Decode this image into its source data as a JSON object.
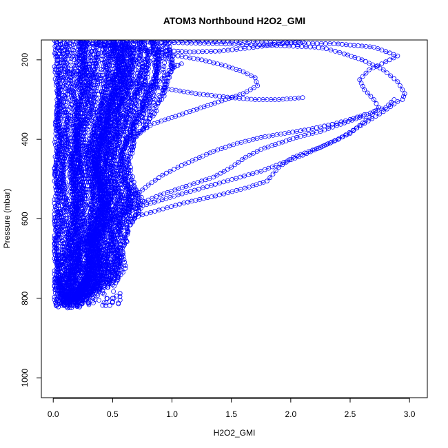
{
  "chart_data": {
    "type": "scatter",
    "title": "ATOM3 Northbound H2O2_GMI",
    "xlabel": "H2O2_GMI",
    "ylabel": "Pressure (mbar)",
    "xlim": [
      -0.1,
      3.15
    ],
    "ylim": [
      1050,
      150
    ],
    "y_reversed": true,
    "x_ticks": [
      0.0,
      0.5,
      1.0,
      1.5,
      2.0,
      2.5,
      3.0
    ],
    "x_tick_labels": [
      "0.0",
      "0.5",
      "1.0",
      "1.5",
      "2.0",
      "2.5",
      "3.0"
    ],
    "y_ticks": [
      200,
      400,
      600,
      800,
      1000
    ],
    "y_tick_labels": [
      "200",
      "400",
      "600",
      "800",
      "1000"
    ],
    "marker": "open-circle",
    "connected": true,
    "series_color": "#0000ff",
    "series": [
      {
        "points": [
          [
            0.02,
            810
          ],
          [
            0.06,
            780
          ],
          [
            0.1,
            730
          ],
          [
            0.16,
            690
          ],
          [
            0.28,
            650
          ],
          [
            0.45,
            610
          ],
          [
            0.72,
            570
          ],
          [
            1.05,
            540
          ],
          [
            1.4,
            510
          ],
          [
            1.75,
            480
          ],
          [
            2.1,
            440
          ],
          [
            2.4,
            400
          ],
          [
            2.62,
            360
          ],
          [
            2.78,
            330
          ],
          [
            2.9,
            305
          ],
          [
            2.94,
            300
          ],
          [
            2.96,
            285
          ],
          [
            2.9,
            255
          ],
          [
            2.78,
            225
          ],
          [
            2.6,
            200
          ],
          [
            2.45,
            185
          ],
          [
            2.3,
            172
          ],
          [
            2.2,
            168
          ],
          [
            1.7,
            162
          ],
          [
            1.2,
            158
          ],
          [
            0.8,
            155
          ],
          [
            0.4,
            152
          ]
        ]
      },
      {
        "points": [
          [
            0.05,
            805
          ],
          [
            0.1,
            760
          ],
          [
            0.18,
            710
          ],
          [
            0.3,
            660
          ],
          [
            0.48,
            620
          ],
          [
            0.75,
            590
          ],
          [
            1.1,
            560
          ],
          [
            1.4,
            540
          ],
          [
            1.65,
            520
          ],
          [
            1.8,
            505
          ],
          [
            1.9,
            470
          ],
          [
            2.02,
            445
          ],
          [
            2.25,
            420
          ],
          [
            2.5,
            385
          ],
          [
            2.66,
            345
          ],
          [
            2.74,
            320
          ],
          [
            2.7,
            300
          ],
          [
            2.62,
            275
          ],
          [
            2.58,
            250
          ],
          [
            2.66,
            225
          ],
          [
            2.8,
            205
          ],
          [
            2.9,
            190
          ],
          [
            2.7,
            168
          ],
          [
            2.4,
            160
          ],
          [
            1.9,
            156
          ],
          [
            1.4,
            153
          ],
          [
            0.9,
            150
          ]
        ]
      },
      {
        "points": [
          [
            0.03,
            815
          ],
          [
            0.08,
            770
          ],
          [
            0.14,
            720
          ],
          [
            0.22,
            670
          ],
          [
            0.36,
            630
          ],
          [
            0.55,
            590
          ],
          [
            0.7,
            565
          ],
          [
            0.9,
            540
          ],
          [
            1.15,
            515
          ],
          [
            1.35,
            495
          ],
          [
            1.5,
            470
          ],
          [
            1.62,
            445
          ],
          [
            1.75,
            425
          ],
          [
            1.9,
            410
          ],
          [
            2.05,
            395
          ],
          [
            2.25,
            380
          ],
          [
            2.42,
            362
          ],
          [
            2.58,
            345
          ],
          [
            2.7,
            330
          ],
          [
            2.8,
            320
          ],
          [
            2.87,
            300
          ]
        ]
      },
      {
        "points": [
          [
            0.08,
            790
          ],
          [
            0.15,
            740
          ],
          [
            0.22,
            690
          ],
          [
            0.32,
            640
          ],
          [
            0.45,
            600
          ],
          [
            0.58,
            570
          ],
          [
            0.7,
            540
          ],
          [
            0.8,
            515
          ],
          [
            0.92,
            490
          ],
          [
            1.05,
            470
          ],
          [
            1.2,
            450
          ],
          [
            1.35,
            430
          ],
          [
            1.55,
            410
          ],
          [
            1.75,
            395
          ],
          [
            1.95,
            385
          ],
          [
            2.15,
            375
          ],
          [
            2.35,
            362
          ],
          [
            2.5,
            350
          ],
          [
            2.62,
            338
          ]
        ]
      },
      {
        "points": [
          [
            0.3,
            160
          ],
          [
            0.6,
            170
          ],
          [
            0.95,
            185
          ],
          [
            1.25,
            200
          ],
          [
            1.45,
            215
          ],
          [
            1.6,
            230
          ],
          [
            1.7,
            245
          ],
          [
            1.72,
            265
          ],
          [
            1.6,
            285
          ],
          [
            1.45,
            300
          ],
          [
            1.3,
            315
          ],
          [
            1.15,
            330
          ],
          [
            1.0,
            345
          ],
          [
            0.85,
            360
          ],
          [
            0.72,
            380
          ],
          [
            0.62,
            405
          ]
        ]
      },
      {
        "points": [
          [
            1.0,
            220
          ],
          [
            1.04,
            214
          ],
          [
            1.08,
            210
          ],
          [
            1.02,
            218
          ]
        ]
      },
      {
        "points": [
          [
            0.2,
            155
          ],
          [
            0.5,
            165
          ],
          [
            0.85,
            175
          ],
          [
            1.15,
            180
          ],
          [
            1.4,
            178
          ],
          [
            1.65,
            170
          ],
          [
            1.9,
            160
          ],
          [
            2.1,
            155
          ]
        ]
      },
      {
        "points": [
          [
            0.1,
            230
          ],
          [
            0.3,
            240
          ],
          [
            0.6,
            255
          ],
          [
            0.9,
            270
          ],
          [
            1.2,
            285
          ],
          [
            1.5,
            295
          ],
          [
            1.7,
            300
          ],
          [
            1.9,
            300
          ],
          [
            2.1,
            295
          ]
        ]
      }
    ],
    "band": {
      "lower": 0.02,
      "upper_by_pressure": [
        [
          830,
          0.35
        ],
        [
          780,
          0.55
        ],
        [
          740,
          0.62
        ],
        [
          700,
          0.6
        ],
        [
          650,
          0.62
        ],
        [
          600,
          0.72
        ],
        [
          560,
          0.78
        ],
        [
          520,
          0.65
        ],
        [
          470,
          0.62
        ],
        [
          420,
          0.7
        ],
        [
          370,
          0.82
        ],
        [
          320,
          0.9
        ],
        [
          270,
          1.0
        ],
        [
          220,
          1.02
        ],
        [
          180,
          0.98
        ],
        [
          150,
          0.92
        ]
      ]
    }
  }
}
